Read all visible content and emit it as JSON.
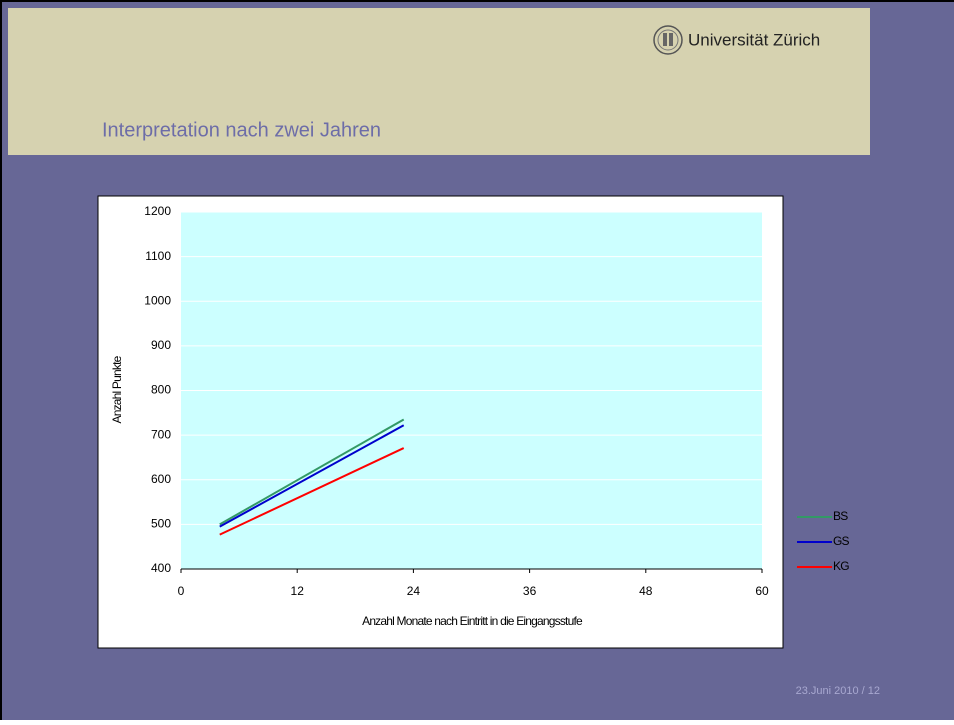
{
  "slide": {
    "title": "Interpretation nach zwei Jahren",
    "logo": "Universität Zürich",
    "footer": "23.Juni 2010  /  12"
  },
  "chart_data": {
    "type": "line",
    "x": [
      4,
      23
    ],
    "series": [
      {
        "name": "BS",
        "color": "#339966",
        "values": [
          500,
          735
        ]
      },
      {
        "name": "GS",
        "color": "#0000cc",
        "values": [
          495,
          722
        ]
      },
      {
        "name": "KG",
        "color": "#ff0000",
        "values": [
          477,
          671
        ]
      }
    ],
    "xlabel": "Anzahl Monate nach Eintritt in die Eingangsstufe",
    "ylabel": "Anzahl Punkte",
    "xlim": [
      0,
      60
    ],
    "xticks": [
      0,
      12,
      24,
      36,
      48,
      60
    ],
    "ylim": [
      400,
      1200
    ],
    "yticks": [
      400,
      500,
      600,
      700,
      800,
      900,
      1000,
      1100,
      1200
    ],
    "grid": true,
    "legend": "right"
  }
}
